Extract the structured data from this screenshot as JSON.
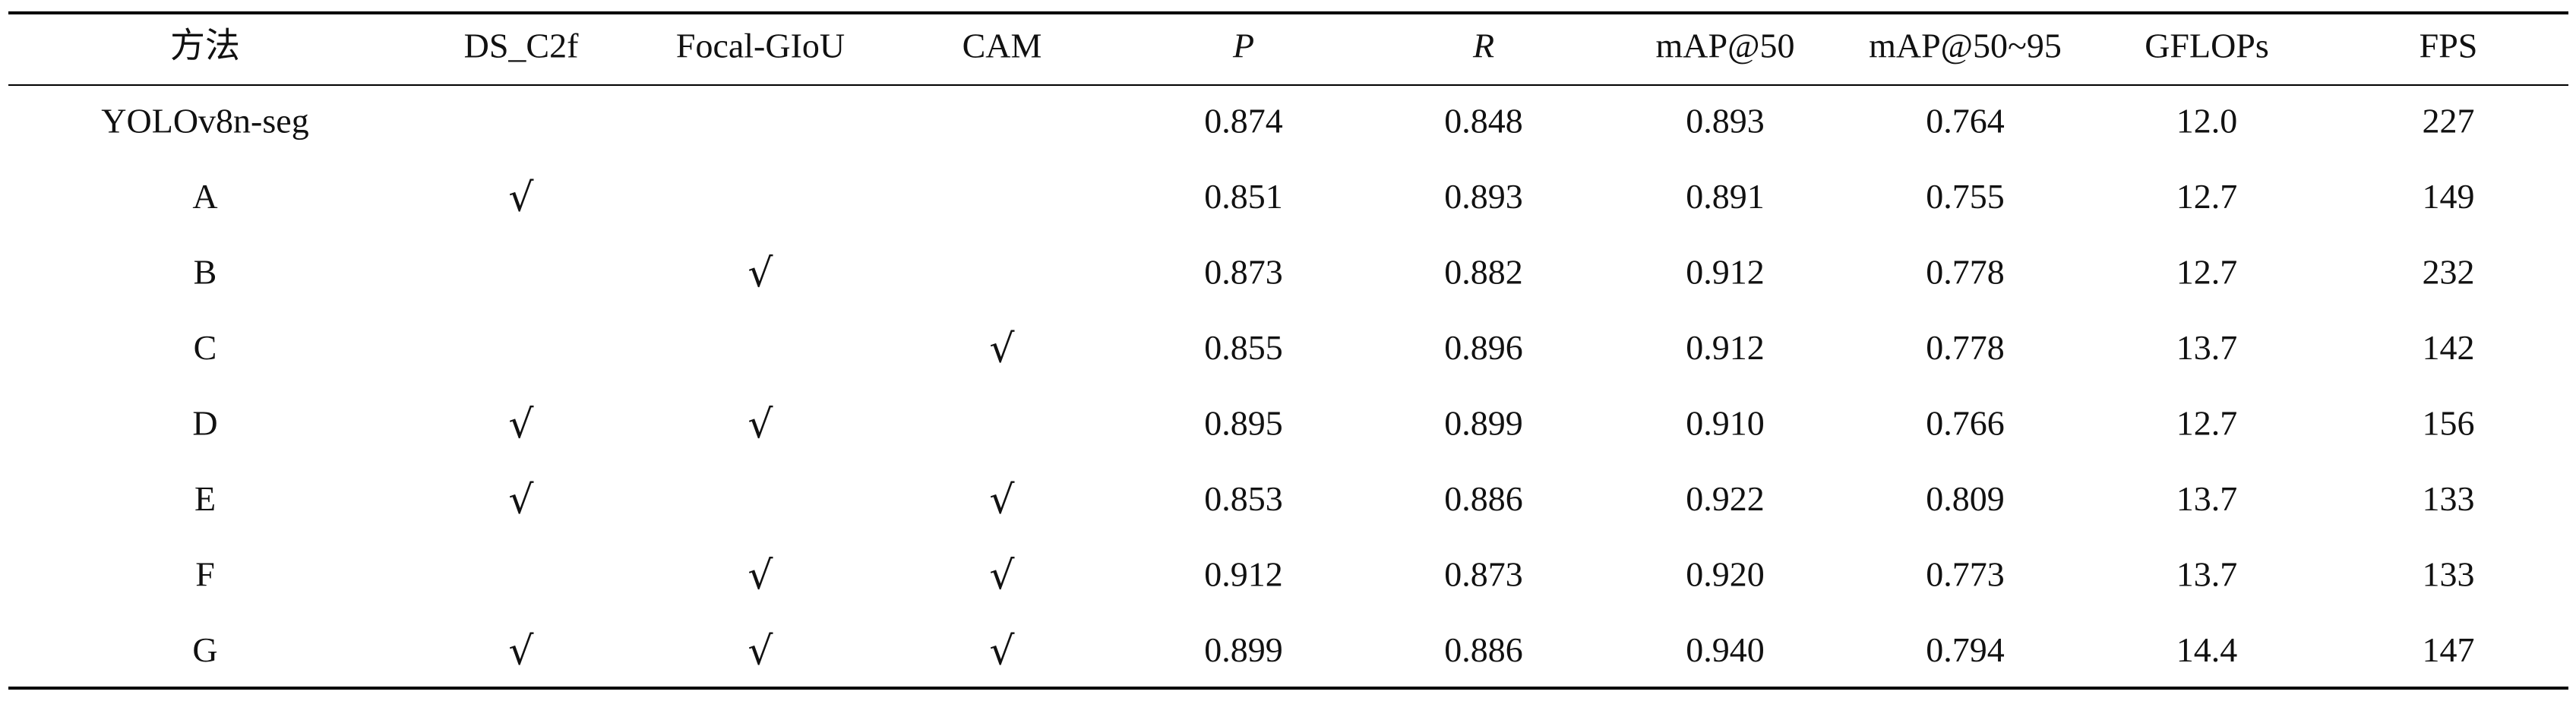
{
  "table": {
    "headers": [
      "方法",
      "DS_C2f",
      "Focal-GIoU",
      "CAM",
      "P",
      "R",
      "mAP@50",
      "mAP@50~95",
      "GFLOPs",
      "FPS"
    ],
    "rows": [
      [
        "YOLOv8n-seg",
        null,
        null,
        null,
        "0.874",
        "0.848",
        "0.893",
        "0.764",
        "12.0",
        "227"
      ],
      [
        "A",
        "√",
        null,
        null,
        "0.851",
        "0.893",
        "0.891",
        "0.755",
        "12.7",
        "149"
      ],
      [
        "B",
        null,
        "√",
        null,
        "0.873",
        "0.882",
        "0.912",
        "0.778",
        "12.7",
        "232"
      ],
      [
        "C",
        null,
        null,
        "√",
        "0.855",
        "0.896",
        "0.912",
        "0.778",
        "13.7",
        "142"
      ],
      [
        "D",
        "√",
        "√",
        null,
        "0.895",
        "0.899",
        "0.910",
        "0.766",
        "12.7",
        "156"
      ],
      [
        "E",
        "√",
        null,
        "√",
        "0.853",
        "0.886",
        "0.922",
        "0.809",
        "13.7",
        "133"
      ],
      [
        "F",
        null,
        "√",
        "√",
        "0.912",
        "0.873",
        "0.920",
        "0.773",
        "13.7",
        "133"
      ],
      [
        "G",
        "√",
        "√",
        "√",
        "0.899",
        "0.886",
        "0.940",
        "0.794",
        "14.4",
        "147"
      ]
    ]
  }
}
